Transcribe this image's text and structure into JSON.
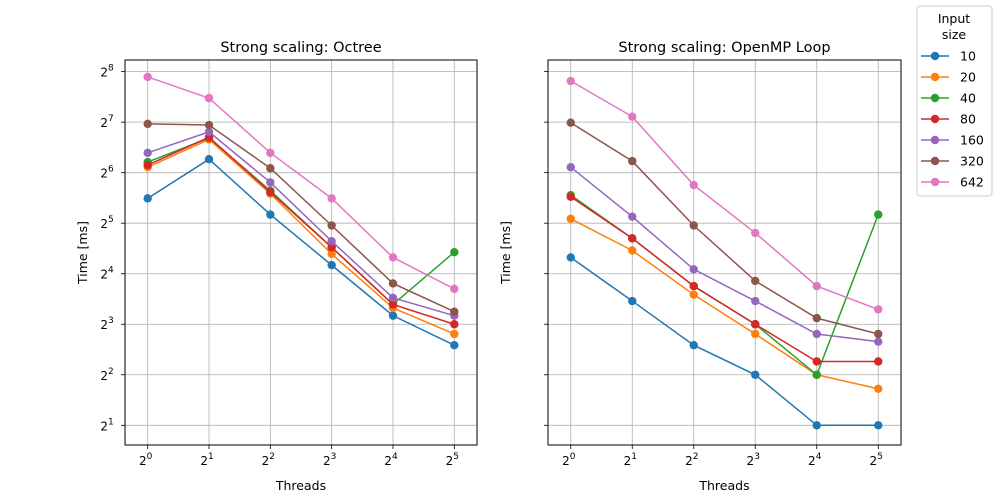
{
  "chart_data": [
    {
      "type": "line",
      "title": "Strong scaling: Octree",
      "xlabel": "Threads",
      "ylabel": "Time [ms]",
      "x_scale": "log2",
      "y_scale": "log2",
      "x": [
        1,
        2,
        4,
        8,
        16,
        32
      ],
      "x_ticks": [
        1,
        2,
        4,
        8,
        16,
        32
      ],
      "x_tick_exponents": [
        "0",
        "1",
        "2",
        "3",
        "4",
        "5"
      ],
      "y_ticks": [
        2,
        4,
        8,
        16,
        32,
        64,
        128,
        256
      ],
      "y_tick_exponents": [
        "1",
        "2",
        "3",
        "4",
        "5",
        "6",
        "7",
        "8"
      ],
      "grid": true,
      "series": [
        {
          "name": "10",
          "values": [
            45,
            77,
            36,
            18,
            9,
            6
          ]
        },
        {
          "name": "20",
          "values": [
            69,
            101,
            48,
            21,
            10,
            7
          ]
        },
        {
          "name": "40",
          "values": [
            74,
            103,
            50,
            23,
            10.5,
            21.5
          ]
        },
        {
          "name": "80",
          "values": [
            71,
            104,
            49,
            23,
            10.5,
            8
          ]
        },
        {
          "name": "160",
          "values": [
            84,
            112,
            56,
            25,
            11.5,
            9
          ]
        },
        {
          "name": "320",
          "values": [
            125,
            123,
            68,
            31,
            14,
            9.5
          ]
        },
        {
          "name": "642",
          "values": [
            238,
            178,
            84,
            45,
            20,
            13
          ]
        }
      ]
    },
    {
      "type": "line",
      "title": "Strong scaling: OpenMP Loop",
      "xlabel": "Threads",
      "ylabel": "Time [ms]",
      "x_scale": "log2",
      "y_scale": "log2",
      "x": [
        1,
        2,
        4,
        8,
        16,
        32
      ],
      "x_ticks": [
        1,
        2,
        4,
        8,
        16,
        32
      ],
      "x_tick_exponents": [
        "0",
        "1",
        "2",
        "3",
        "4",
        "5"
      ],
      "y_ticks": [
        2,
        4,
        8,
        16,
        32,
        64,
        128,
        256
      ],
      "y_tick_exponents": [
        "1",
        "2",
        "3",
        "4",
        "5",
        "6",
        "7",
        "8"
      ],
      "grid": true,
      "series": [
        {
          "name": "10",
          "values": [
            20,
            11,
            6,
            4,
            2,
            2
          ]
        },
        {
          "name": "20",
          "values": [
            34,
            22,
            12,
            7,
            4,
            3.3
          ]
        },
        {
          "name": "40",
          "values": [
            47,
            26,
            13.5,
            8,
            4,
            36
          ]
        },
        {
          "name": "80",
          "values": [
            46,
            26,
            13.5,
            8,
            4.8,
            4.8
          ]
        },
        {
          "name": "160",
          "values": [
            69,
            35,
            17,
            11,
            7,
            6.3
          ]
        },
        {
          "name": "320",
          "values": [
            127,
            75,
            31,
            14.5,
            8.7,
            7
          ]
        },
        {
          "name": "642",
          "values": [
            225,
            138,
            54,
            28,
            13.5,
            9.8
          ]
        }
      ]
    }
  ],
  "legend": {
    "title": "Input\nsize",
    "title_lines": [
      "Input",
      "size"
    ],
    "entries": [
      "10",
      "20",
      "40",
      "80",
      "160",
      "320",
      "642"
    ],
    "placement": "outside-right-top"
  },
  "colors": [
    "#1f77b4",
    "#ff7f0e",
    "#2ca02c",
    "#d62728",
    "#9467bd",
    "#8c564b",
    "#e377c2"
  ]
}
